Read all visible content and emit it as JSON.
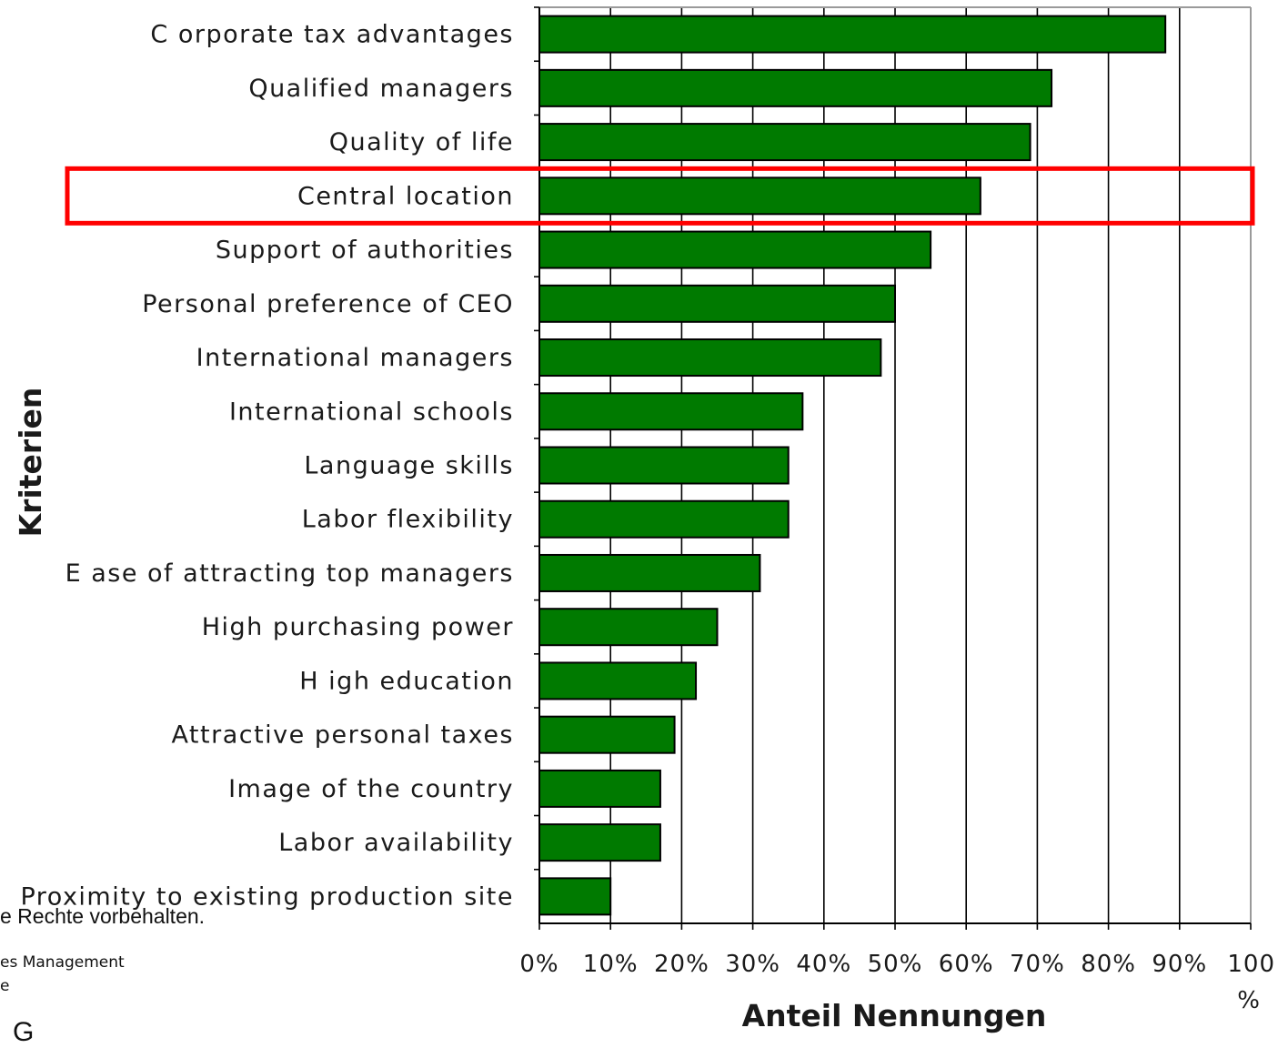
{
  "chart_data": {
    "type": "bar",
    "orientation": "horizontal",
    "categories": [
      "C orporate tax advantages",
      "Qualified managers",
      "Quality of life",
      "Central location",
      "Support of authorities",
      "Personal preference of CEO",
      "International managers",
      "International schools",
      "Language skills",
      "Labor flexibility",
      "E ase of attracting top managers",
      "High purchasing power",
      "H igh education",
      "Attractive personal taxes",
      "Image of the country",
      "Labor availability",
      "Proximity to existing production site"
    ],
    "values": [
      88,
      72,
      69,
      62,
      55,
      50,
      48,
      37,
      35,
      35,
      31,
      25,
      22,
      19,
      17,
      17,
      10
    ],
    "xlim": [
      0,
      100
    ],
    "xticks": [
      0,
      10,
      20,
      30,
      40,
      50,
      60,
      70,
      80,
      90,
      100
    ],
    "xtick_labels": [
      "0%",
      "10%",
      "20%",
      "30%",
      "40%",
      "50%",
      "60%",
      "70%",
      "80%",
      "90%",
      "100%"
    ],
    "xlabel": "Anteil Nennungen",
    "ylabel": "Kriterien",
    "grid": "vertical",
    "bar_color": "#007a00",
    "highlight": {
      "category": "Central location",
      "color": "#ff0000"
    }
  },
  "footer": {
    "rights": "e Rechte vorbehalten.",
    "mgmt": "es Management",
    "e": "e",
    "g": "G"
  }
}
